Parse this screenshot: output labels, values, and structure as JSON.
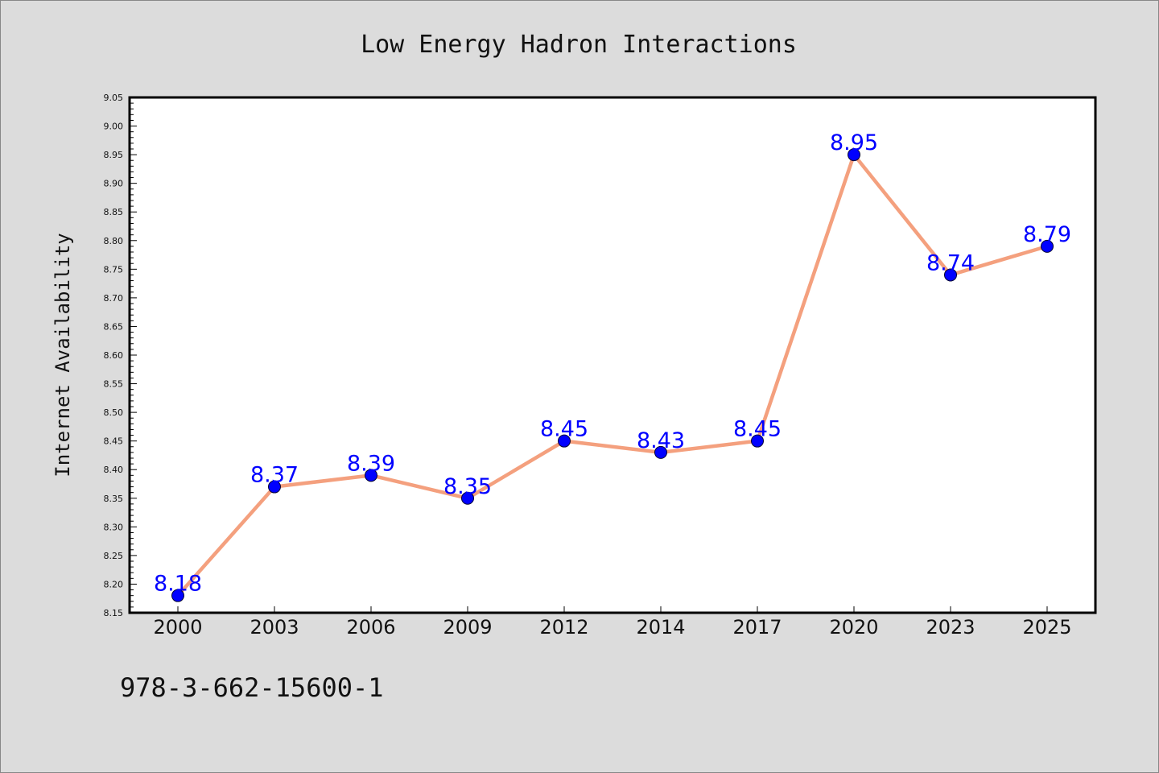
{
  "chart_data": {
    "type": "line",
    "title": "Low Energy Hadron Interactions",
    "xlabel": "",
    "ylabel": "Internet Availability",
    "categories": [
      "2000",
      "2003",
      "2006",
      "2009",
      "2012",
      "2014",
      "2017",
      "2020",
      "2023",
      "2025"
    ],
    "series": [
      {
        "values": [
          8.18,
          8.37,
          8.39,
          8.35,
          8.45,
          8.43,
          8.45,
          8.95,
          8.74,
          8.79
        ]
      }
    ],
    "data_labels": [
      "8.18",
      "8.37",
      "8.39",
      "8.35",
      "8.45",
      "8.43",
      "8.45",
      "8.95",
      "8.74",
      "8.79"
    ],
    "ylim": [
      8.15,
      9.05
    ],
    "yticks": [
      "8.15",
      "8.20",
      "8.25",
      "8.30",
      "8.35",
      "8.40",
      "8.45",
      "8.50",
      "8.55",
      "8.60",
      "8.65",
      "8.70",
      "8.75",
      "8.80",
      "8.85",
      "8.90",
      "8.95",
      "9.00",
      "9.05"
    ],
    "grid": false,
    "line_color": "#f4a07e",
    "marker_color": "#0000ff",
    "label_color": "#0000ff"
  },
  "footer": {
    "isbn": "978-3-662-15600-1"
  }
}
